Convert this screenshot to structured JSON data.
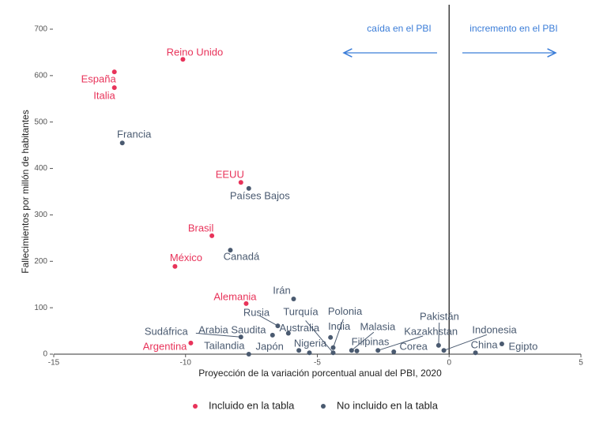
{
  "chart_data": {
    "type": "scatter",
    "xlabel": "Proyección de la variación porcentual anual del PBI, 2020",
    "ylabel": "Fallecimientos por millón de habitantes",
    "xlim": [
      -15,
      5
    ],
    "xticks": [
      -15,
      -10,
      -5,
      0,
      5
    ],
    "ylim": [
      0,
      700
    ],
    "yticks": [
      0,
      100,
      200,
      300,
      400,
      500,
      600,
      700
    ],
    "vline": 0,
    "annotations": [
      "caída en el PBI",
      "incremento en el PBI"
    ],
    "legend": "bottom",
    "series": [
      {
        "name": "Incluido en la tabla",
        "color": "#e8335a",
        "labels": [
          "Reino Unido",
          "España",
          "Italia",
          "EEUU",
          "Brasil",
          "México",
          "Alemania",
          "Argentina"
        ],
        "x": [
          -10.1,
          -12.7,
          -12.7,
          -7.9,
          -9.0,
          -10.4,
          -7.7,
          -9.8
        ],
        "values": [
          635,
          608,
          574,
          370,
          255,
          189,
          109,
          24
        ]
      },
      {
        "name": "No incluido en la tabla",
        "color": "#4a5a70",
        "labels": [
          "Francia",
          "Países Bajos",
          "Canadá",
          "Irán",
          "Rusia",
          "Arabia Saudita",
          "Sudáfrica",
          "Australia",
          "Turquía",
          "India",
          "Polonia",
          "Malasia",
          "Filipinas",
          "Nigeria",
          "Japón",
          "Tailandia",
          "Kazakhstan",
          "Corea",
          "Pakistán",
          "Indonesia",
          "China",
          "Egipto"
        ],
        "x": [
          -12.4,
          -7.6,
          -8.3,
          -5.9,
          -6.5,
          -6.7,
          -7.9,
          -6.1,
          -4.4,
          -4.5,
          -4.4,
          -3.7,
          -3.5,
          -5.3,
          -5.7,
          -7.6,
          -2.7,
          -2.1,
          -0.4,
          -0.2,
          1.0,
          2.0
        ],
        "values": [
          455,
          357,
          224,
          119,
          61,
          41,
          37,
          45,
          3,
          36,
          14,
          8,
          7,
          3,
          8,
          0,
          8,
          5,
          19,
          8,
          3,
          22
        ]
      }
    ]
  }
}
